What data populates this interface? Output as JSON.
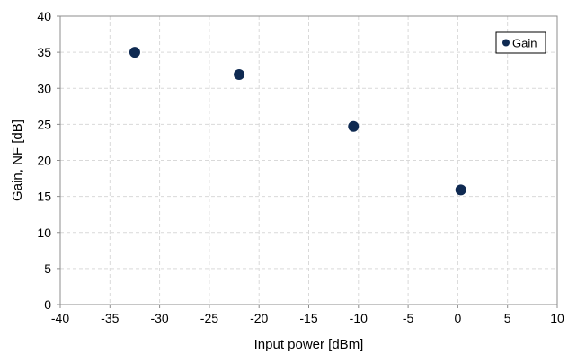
{
  "chart_data": {
    "type": "scatter",
    "title": "",
    "xlabel": "Input power [dBm]",
    "ylabel": "Gain, NF [dB]",
    "xlim": [
      -40,
      10
    ],
    "ylim": [
      0,
      40
    ],
    "xticks": [
      -40,
      -35,
      -30,
      -25,
      -20,
      -15,
      -10,
      -5,
      0,
      5,
      10
    ],
    "yticks": [
      0,
      5,
      10,
      15,
      20,
      25,
      30,
      35,
      40
    ],
    "grid": true,
    "legend_position": "top-right",
    "series": [
      {
        "name": "Gain",
        "color": "#0f2a52",
        "marker": "circle",
        "points": [
          {
            "x": -32.5,
            "y": 35.0
          },
          {
            "x": -22.0,
            "y": 31.9
          },
          {
            "x": -10.5,
            "y": 24.7
          },
          {
            "x": 0.3,
            "y": 15.9
          }
        ]
      }
    ]
  }
}
